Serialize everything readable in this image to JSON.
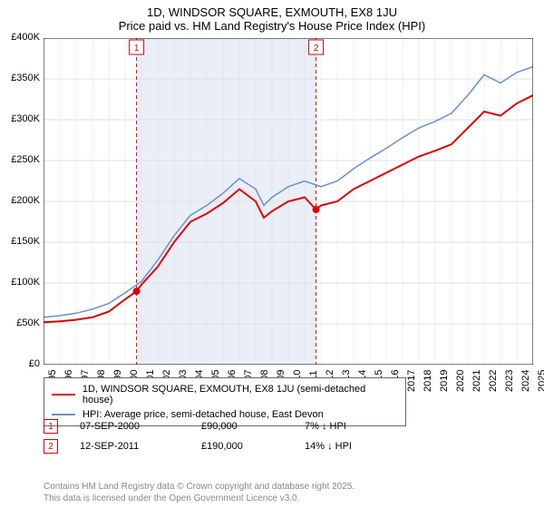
{
  "title_line1": "1D, WINDSOR SQUARE, EXMOUTH, EX8 1JU",
  "title_line2": "Price paid vs. HM Land Registry's House Price Index (HPI)",
  "chart": {
    "type": "line",
    "background_color": "#ffffff",
    "grid_color": "#e0e0e0",
    "shaded_band_color": "#eaeef7",
    "x_axis": {
      "min": 1995,
      "max": 2025,
      "tick_step": 1,
      "labels": [
        "1995",
        "1996",
        "1997",
        "1998",
        "1999",
        "2000",
        "2001",
        "2002",
        "2003",
        "2004",
        "2005",
        "2006",
        "2007",
        "2008",
        "2009",
        "2010",
        "2011",
        "2012",
        "2013",
        "2014",
        "2015",
        "2016",
        "2017",
        "2018",
        "2019",
        "2020",
        "2021",
        "2022",
        "2023",
        "2024",
        "2025"
      ]
    },
    "y_axis": {
      "min": 0,
      "max": 400000,
      "tick_step": 50000,
      "labels": [
        "£0",
        "£50K",
        "£100K",
        "£150K",
        "£200K",
        "£250K",
        "£300K",
        "£350K",
        "£400K"
      ]
    },
    "shaded_band": {
      "x_start": 2000.7,
      "x_end": 2011.7
    },
    "series": [
      {
        "name": "property",
        "label": "1D, WINDSOR SQUARE, EXMOUTH, EX8 1JU (semi-detached house)",
        "color": "#e00000",
        "line_width": 2,
        "points": [
          [
            1995,
            52000
          ],
          [
            1996,
            53000
          ],
          [
            1997,
            55000
          ],
          [
            1998,
            58000
          ],
          [
            1999,
            65000
          ],
          [
            2000,
            80000
          ],
          [
            2000.7,
            90000
          ],
          [
            2001,
            98000
          ],
          [
            2002,
            120000
          ],
          [
            2003,
            150000
          ],
          [
            2004,
            175000
          ],
          [
            2005,
            185000
          ],
          [
            2006,
            198000
          ],
          [
            2007,
            215000
          ],
          [
            2008,
            200000
          ],
          [
            2008.5,
            180000
          ],
          [
            2009,
            188000
          ],
          [
            2010,
            200000
          ],
          [
            2011,
            205000
          ],
          [
            2011.7,
            190000
          ],
          [
            2012,
            195000
          ],
          [
            2013,
            200000
          ],
          [
            2014,
            215000
          ],
          [
            2015,
            225000
          ],
          [
            2016,
            235000
          ],
          [
            2017,
            245000
          ],
          [
            2018,
            255000
          ],
          [
            2019,
            262000
          ],
          [
            2020,
            270000
          ],
          [
            2021,
            290000
          ],
          [
            2022,
            310000
          ],
          [
            2023,
            305000
          ],
          [
            2024,
            320000
          ],
          [
            2025,
            330000
          ]
        ]
      },
      {
        "name": "hpi",
        "label": "HPI: Average price, semi-detached house, East Devon",
        "color": "#6a8fd8",
        "line_width": 1.5,
        "points": [
          [
            1995,
            58000
          ],
          [
            1996,
            60000
          ],
          [
            1997,
            63000
          ],
          [
            1998,
            68000
          ],
          [
            1999,
            75000
          ],
          [
            2000,
            88000
          ],
          [
            2001,
            102000
          ],
          [
            2002,
            128000
          ],
          [
            2003,
            158000
          ],
          [
            2004,
            183000
          ],
          [
            2005,
            195000
          ],
          [
            2006,
            210000
          ],
          [
            2007,
            228000
          ],
          [
            2008,
            215000
          ],
          [
            2008.5,
            195000
          ],
          [
            2009,
            205000
          ],
          [
            2010,
            218000
          ],
          [
            2011,
            225000
          ],
          [
            2012,
            218000
          ],
          [
            2013,
            225000
          ],
          [
            2014,
            240000
          ],
          [
            2015,
            253000
          ],
          [
            2016,
            265000
          ],
          [
            2017,
            278000
          ],
          [
            2018,
            290000
          ],
          [
            2019,
            298000
          ],
          [
            2020,
            308000
          ],
          [
            2021,
            330000
          ],
          [
            2022,
            355000
          ],
          [
            2023,
            345000
          ],
          [
            2024,
            358000
          ],
          [
            2025,
            365000
          ]
        ]
      }
    ],
    "markers": [
      {
        "id": "1",
        "x": 2000.7,
        "y": 90000,
        "color": "#e00000",
        "border_color": "#e00000",
        "line_dash": "4,3",
        "line_color": "#e00000"
      },
      {
        "id": "2",
        "x": 2011.7,
        "y": 190000,
        "color": "#e00000",
        "border_color": "#e00000",
        "line_dash": "4,3",
        "line_color": "#e00000"
      }
    ]
  },
  "legend": {
    "border_color": "#666666",
    "items": [
      {
        "color": "#e00000",
        "label": "1D, WINDSOR SQUARE, EXMOUTH, EX8 1JU (semi-detached house)"
      },
      {
        "color": "#6a8fd8",
        "label": "HPI: Average price, semi-detached house, East Devon"
      }
    ]
  },
  "marker_rows": [
    {
      "id": "1",
      "color": "#e00000",
      "date": "07-SEP-2000",
      "price": "£90,000",
      "delta": "7% ↓ HPI"
    },
    {
      "id": "2",
      "color": "#e00000",
      "date": "12-SEP-2011",
      "price": "£190,000",
      "delta": "14% ↓ HPI"
    }
  ],
  "footer_line1": "Contains HM Land Registry data © Crown copyright and database right 2025.",
  "footer_line2": "This data is licensed under the Open Government Licence v3.0."
}
